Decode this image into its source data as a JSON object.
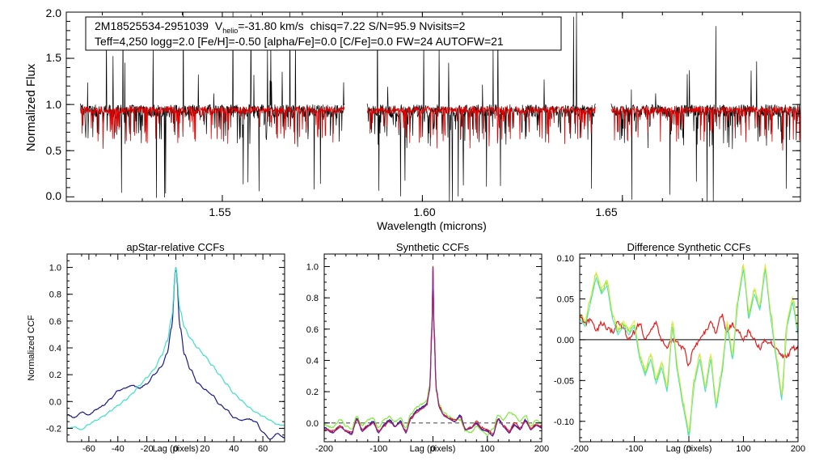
{
  "figure": {
    "header_line1": {
      "object": "2M18525534-2951039",
      "vhelio_prefix": "V",
      "vhelio_subscript": "helio",
      "vhelio_value": "=-31.80 km/s",
      "stats": "chisq=7.22  S/N=95.9  Nvisits=2"
    },
    "header_line2": "Teff=4,250 logg=2.0 [Fe/H]=-0.50 [alpha/Fe]=0.0 [C/Fe]=0.0 FW=24 AUTOFW=21"
  },
  "colors": {
    "observed": "#000000",
    "model": "#e00000",
    "ccf_navy": "#1a1a8c",
    "ccf_teal": "#3fe0c8",
    "ccf_green": "#7dea3a",
    "ccf_yellow": "#e8e83a",
    "ccf_red": "#e02020",
    "ccf_purple": "#8a1ea0",
    "zero_line": "#000000"
  },
  "chart_data": [
    {
      "type": "line",
      "title": "",
      "xlabel": "Wavelength (microns)",
      "ylabel": "Normalized Flux",
      "xlim": [
        1.511,
        1.6945
      ],
      "ylim": [
        -0.05,
        2.0
      ],
      "xticks": [
        1.55,
        1.6,
        1.65
      ],
      "xtick_labels": [
        "1.55",
        "1.60",
        "1.65"
      ],
      "yticks": [
        0.0,
        0.5,
        1.0,
        1.5,
        2.0
      ],
      "ytick_labels": [
        "0.0",
        "0.5",
        "1.0",
        "1.5",
        "2.0"
      ],
      "chip_ranges": [
        [
          1.5145,
          1.5805
        ],
        [
          1.5862,
          1.6432
        ],
        [
          1.6472,
          1.6952
        ]
      ],
      "series": [
        {
          "name": "Observed spectrum",
          "continuum": 0.93,
          "scatter": 0.07
        },
        {
          "name": "Best-fit synthetic spectrum",
          "continuum": 0.94,
          "scatter": 0.04
        }
      ]
    },
    {
      "type": "line",
      "title": "apStar-relative CCFs",
      "xlabel": "Lag (pixels)",
      "ylabel": "Normalized CCF",
      "xlim": [
        -75,
        75
      ],
      "ylim": [
        -0.3,
        1.1
      ],
      "xticks": [
        -60,
        -40,
        -20,
        0,
        20,
        40,
        60
      ],
      "xtick_labels": [
        "-60",
        "-40",
        "-20",
        "0",
        "20",
        "40",
        "60"
      ],
      "yticks": [
        -0.2,
        0.0,
        0.2,
        0.4,
        0.6,
        0.8,
        1.0
      ],
      "ytick_labels": [
        "-0.2",
        "0.0",
        "0.2",
        "0.4",
        "0.6",
        "0.8",
        "1.0"
      ],
      "series": [
        {
          "name": "visit 1 (navy)",
          "x": [
            -75,
            -70,
            -65,
            -60,
            -55,
            -50,
            -45,
            -40,
            -35,
            -30,
            -25,
            -20,
            -15,
            -10,
            -6,
            -3,
            0,
            3,
            6,
            10,
            15,
            20,
            25,
            30,
            35,
            40,
            45,
            50,
            55,
            60,
            65,
            70,
            75
          ],
          "y": [
            -0.1,
            -0.12,
            -0.08,
            -0.1,
            -0.06,
            -0.03,
            0.02,
            0.08,
            0.1,
            0.12,
            0.1,
            0.13,
            0.2,
            0.26,
            0.36,
            0.55,
            1.0,
            0.55,
            0.35,
            0.24,
            0.14,
            0.09,
            0.05,
            -0.02,
            -0.06,
            -0.12,
            -0.14,
            -0.13,
            -0.15,
            -0.23,
            -0.28,
            -0.24,
            -0.27
          ]
        },
        {
          "name": "visit 2 (teal)",
          "x": [
            -75,
            -70,
            -65,
            -60,
            -55,
            -50,
            -45,
            -40,
            -35,
            -30,
            -25,
            -20,
            -15,
            -10,
            -6,
            -3,
            0,
            3,
            6,
            10,
            15,
            20,
            25,
            30,
            35,
            40,
            45,
            50,
            55,
            60,
            65,
            70,
            75
          ],
          "y": [
            -0.2,
            -0.19,
            -0.21,
            -0.17,
            -0.14,
            -0.11,
            -0.07,
            -0.03,
            0.01,
            0.06,
            0.12,
            0.18,
            0.24,
            0.34,
            0.45,
            0.62,
            1.0,
            0.68,
            0.55,
            0.47,
            0.4,
            0.34,
            0.27,
            0.2,
            0.13,
            0.06,
            0.01,
            -0.04,
            -0.08,
            -0.11,
            -0.14,
            -0.17,
            -0.18
          ]
        }
      ]
    },
    {
      "type": "line",
      "title": "Synthetic CCFs",
      "xlabel": "Lag (pixels)",
      "ylabel": "",
      "xlim": [
        -200,
        200
      ],
      "ylim": [
        -0.12,
        1.08
      ],
      "xticks": [
        -200,
        -100,
        0,
        100,
        200
      ],
      "xtick_labels": [
        "-200",
        "-100",
        "0",
        "100",
        "200"
      ],
      "yticks": [
        0.0,
        0.2,
        0.4,
        0.6,
        0.8,
        1.0
      ],
      "ytick_labels": [
        "0.0",
        "0.2",
        "0.4",
        "0.6",
        "0.8",
        "1.0"
      ],
      "dashed_zero": true,
      "series": [
        {
          "name": "navy",
          "x": [
            -200,
            -185,
            -170,
            -160,
            -150,
            -140,
            -130,
            -120,
            -110,
            -100,
            -90,
            -80,
            -70,
            -60,
            -50,
            -40,
            -30,
            -20,
            -12,
            -6,
            -2,
            0,
            2,
            6,
            12,
            20,
            30,
            40,
            50,
            60,
            70,
            80,
            90,
            100,
            110,
            120,
            130,
            140,
            150,
            160,
            170,
            180,
            190,
            200
          ],
          "y": [
            -0.03,
            -0.06,
            -0.02,
            -0.05,
            -0.07,
            0.03,
            -0.05,
            -0.02,
            0.01,
            -0.06,
            -0.01,
            0.02,
            -0.02,
            0.01,
            -0.06,
            0.04,
            0.08,
            0.1,
            0.12,
            0.22,
            0.6,
            1.0,
            0.6,
            0.22,
            0.1,
            0.05,
            0.03,
            0.01,
            0.05,
            -0.04,
            -0.03,
            0.0,
            -0.04,
            -0.05,
            -0.08,
            0.03,
            -0.02,
            -0.06,
            -0.01,
            -0.04,
            0.02,
            -0.04,
            -0.01,
            -0.03
          ]
        },
        {
          "name": "green",
          "x": [
            -200,
            -185,
            -170,
            -160,
            -150,
            -140,
            -130,
            -120,
            -110,
            -100,
            -90,
            -80,
            -70,
            -60,
            -50,
            -40,
            -30,
            -20,
            -12,
            -6,
            -2,
            0,
            2,
            6,
            12,
            20,
            30,
            40,
            50,
            60,
            70,
            80,
            90,
            100,
            110,
            120,
            130,
            140,
            150,
            160,
            170,
            180,
            190,
            200
          ],
          "y": [
            -0.01,
            -0.03,
            0.02,
            -0.02,
            -0.04,
            0.04,
            -0.02,
            0.02,
            0.03,
            -0.03,
            0.02,
            0.04,
            0.01,
            0.03,
            -0.03,
            0.06,
            0.1,
            0.12,
            0.14,
            0.24,
            0.6,
            1.0,
            0.6,
            0.22,
            0.11,
            0.07,
            0.04,
            0.02,
            0.02,
            -0.05,
            -0.06,
            -0.02,
            -0.05,
            -0.08,
            -0.04,
            0.05,
            0.02,
            0.07,
            0.05,
            0.01,
            0.05,
            -0.02,
            0.02,
            0.0
          ]
        },
        {
          "name": "red",
          "x": [
            -200,
            -185,
            -170,
            -160,
            -150,
            -140,
            -130,
            -120,
            -110,
            -100,
            -90,
            -80,
            -70,
            -60,
            -50,
            -40,
            -30,
            -20,
            -12,
            -6,
            -2,
            0,
            2,
            6,
            12,
            20,
            30,
            40,
            50,
            60,
            70,
            80,
            90,
            100,
            110,
            120,
            130,
            140,
            150,
            160,
            170,
            180,
            190,
            200
          ],
          "y": [
            -0.04,
            -0.05,
            -0.02,
            -0.05,
            -0.06,
            0.02,
            -0.04,
            -0.02,
            0.0,
            -0.05,
            -0.02,
            0.01,
            -0.02,
            0.0,
            -0.05,
            0.03,
            0.07,
            0.09,
            0.11,
            0.21,
            0.6,
            1.0,
            0.6,
            0.21,
            0.1,
            0.05,
            0.03,
            0.02,
            0.04,
            -0.04,
            -0.03,
            0.01,
            -0.03,
            -0.04,
            -0.07,
            0.02,
            -0.02,
            -0.05,
            0.0,
            -0.03,
            0.01,
            -0.03,
            -0.01,
            -0.02
          ]
        }
      ]
    },
    {
      "type": "line",
      "title": "Difference Synthetic CCFs",
      "xlabel": "Lag (pixels)",
      "ylabel": "",
      "xlim": [
        -200,
        200
      ],
      "ylim": [
        -0.125,
        0.105
      ],
      "xticks": [
        -200,
        -100,
        0,
        100,
        200
      ],
      "xtick_labels": [
        "-200",
        "-100",
        "0",
        "100",
        "200"
      ],
      "yticks": [
        -0.1,
        -0.05,
        0.0,
        0.05,
        0.1
      ],
      "ytick_labels": [
        "-0.10",
        "-0.05",
        "0.00",
        "0.05",
        "0.10"
      ],
      "zero_line": true,
      "series": [
        {
          "name": "green",
          "x": [
            -200,
            -190,
            -180,
            -170,
            -160,
            -150,
            -140,
            -130,
            -120,
            -110,
            -100,
            -90,
            -80,
            -70,
            -60,
            -50,
            -40,
            -30,
            -20,
            -10,
            0,
            10,
            20,
            30,
            40,
            50,
            60,
            70,
            80,
            90,
            100,
            110,
            120,
            130,
            140,
            150,
            160,
            170,
            180,
            190,
            200
          ],
          "y": [
            0.03,
            0.02,
            0.05,
            0.08,
            0.06,
            0.07,
            0.03,
            0.01,
            0.02,
            0.01,
            0.02,
            -0.02,
            -0.04,
            -0.02,
            -0.05,
            -0.03,
            -0.06,
            0.02,
            -0.04,
            -0.08,
            -0.115,
            -0.05,
            -0.02,
            -0.06,
            -0.02,
            -0.08,
            -0.04,
            0.02,
            -0.02,
            0.05,
            0.09,
            0.03,
            0.06,
            0.04,
            0.09,
            0.03,
            -0.02,
            -0.07,
            0.02,
            0.05,
            0.01
          ]
        },
        {
          "name": "red",
          "x": [
            -200,
            -190,
            -180,
            -170,
            -160,
            -150,
            -140,
            -130,
            -120,
            -110,
            -100,
            -90,
            -80,
            -70,
            -60,
            -50,
            -40,
            -30,
            -20,
            -10,
            0,
            10,
            20,
            30,
            40,
            50,
            60,
            70,
            80,
            90,
            100,
            110,
            120,
            130,
            140,
            150,
            160,
            170,
            180,
            190,
            200
          ],
          "y": [
            0.03,
            0.02,
            0.025,
            0.01,
            0.02,
            0.015,
            0.01,
            0.02,
            0.015,
            0.0,
            0.01,
            0.02,
            0.0,
            0.01,
            0.02,
            0.0,
            -0.01,
            0.0,
            -0.005,
            -0.01,
            -0.03,
            -0.01,
            0.0,
            0.01,
            0.02,
            0.01,
            0.03,
            0.01,
            0.02,
            0.01,
            0.0,
            0.01,
            0.0,
            -0.01,
            0.0,
            -0.005,
            -0.01,
            -0.02,
            -0.02,
            -0.01,
            -0.01
          ]
        }
      ]
    }
  ]
}
